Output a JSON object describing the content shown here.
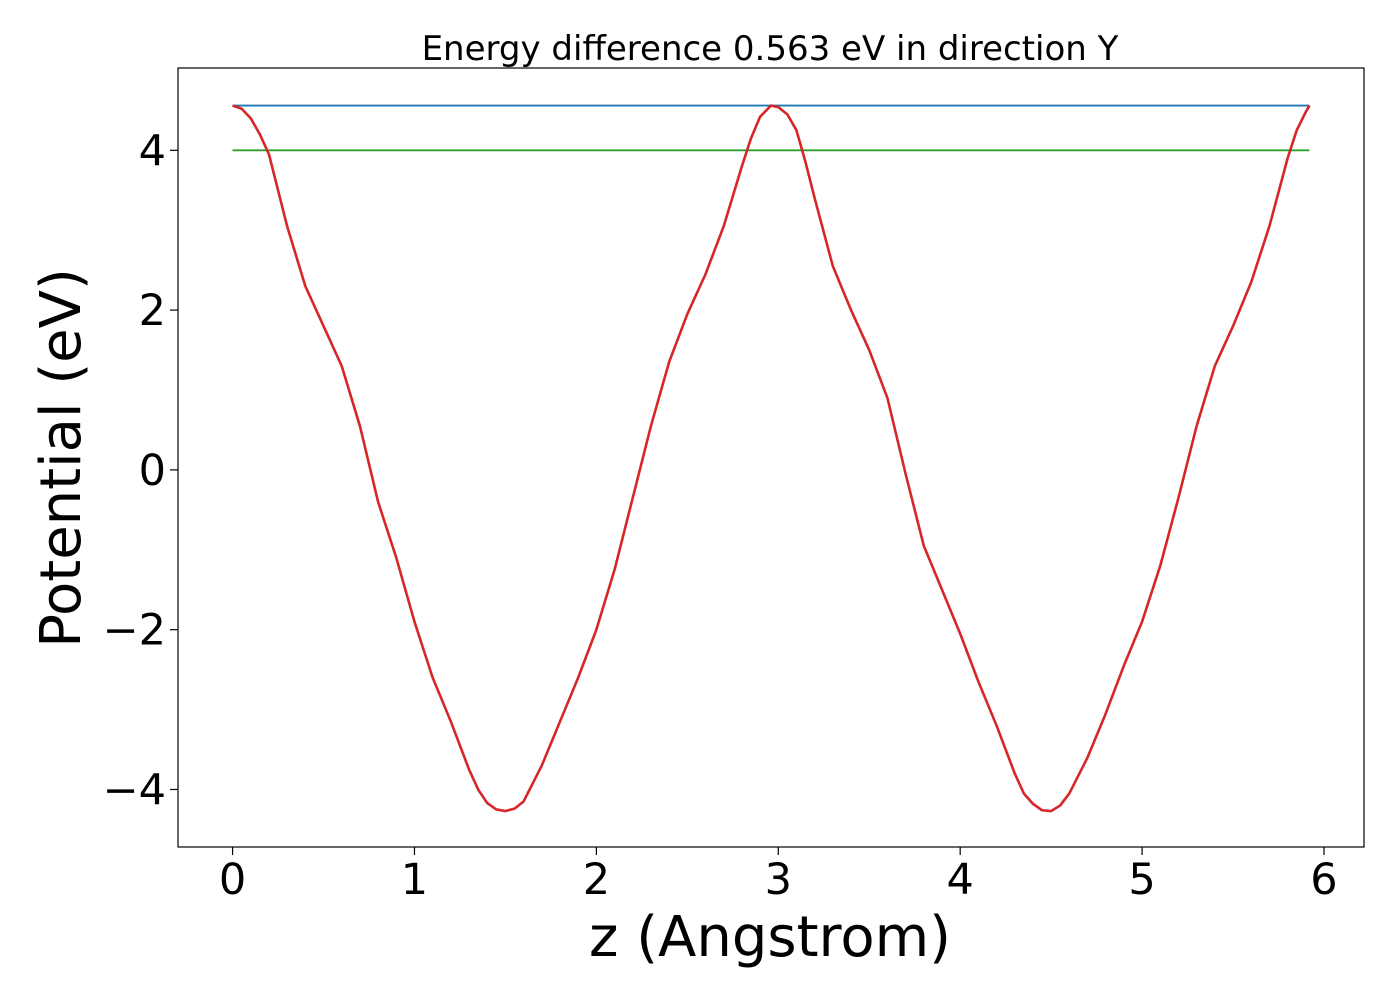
{
  "chart_data": {
    "type": "line",
    "title": "Energy difference 0.563 eV in direction Y",
    "xlabel": "z (Angstrom)",
    "ylabel": "Potential (eV)",
    "xlim": [
      -0.3,
      6.22
    ],
    "ylim": [
      -4.72,
      5.03
    ],
    "xticks": [
      0,
      1,
      2,
      3,
      4,
      5,
      6
    ],
    "xtick_labels": [
      "0",
      "1",
      "2",
      "3",
      "4",
      "5",
      "6"
    ],
    "yticks": [
      -4,
      -2,
      0,
      2,
      4
    ],
    "ytick_labels": [
      "−4",
      "−2",
      "0",
      "2",
      "4"
    ],
    "grid": false,
    "series": [
      {
        "color": "#1f77b4",
        "x": [
          0,
          5.92
        ],
        "y": [
          4.56,
          4.56
        ]
      },
      {
        "color": "#2ca02c",
        "x": [
          0,
          5.92
        ],
        "y": [
          4.0,
          4.0
        ]
      },
      {
        "color": "#d62728",
        "x": [
          0.0,
          0.05,
          0.1,
          0.15,
          0.2,
          0.3,
          0.4,
          0.5,
          0.6,
          0.7,
          0.8,
          0.9,
          1.0,
          1.1,
          1.2,
          1.3,
          1.35,
          1.4,
          1.45,
          1.5,
          1.55,
          1.6,
          1.7,
          1.8,
          1.9,
          2.0,
          2.1,
          2.2,
          2.3,
          2.4,
          2.5,
          2.6,
          2.7,
          2.8,
          2.85,
          2.9,
          2.96,
          3.0,
          3.05,
          3.1,
          3.15,
          3.2,
          3.3,
          3.4,
          3.5,
          3.6,
          3.7,
          3.8,
          3.9,
          4.0,
          4.1,
          4.2,
          4.3,
          4.35,
          4.4,
          4.45,
          4.5,
          4.55,
          4.6,
          4.7,
          4.8,
          4.9,
          5.0,
          5.1,
          5.2,
          5.3,
          5.4,
          5.5,
          5.6,
          5.7,
          5.8,
          5.85,
          5.9,
          5.92
        ],
        "y": [
          4.56,
          4.52,
          4.4,
          4.2,
          3.95,
          3.05,
          2.3,
          1.8,
          1.3,
          0.55,
          -0.4,
          -1.1,
          -1.9,
          -2.6,
          -3.15,
          -3.75,
          -4.0,
          -4.17,
          -4.25,
          -4.27,
          -4.24,
          -4.15,
          -3.7,
          -3.15,
          -2.6,
          -2.0,
          -1.25,
          -0.35,
          0.55,
          1.35,
          1.95,
          2.45,
          3.05,
          3.8,
          4.15,
          4.42,
          4.56,
          4.54,
          4.45,
          4.25,
          3.85,
          3.4,
          2.55,
          2.0,
          1.5,
          0.9,
          -0.05,
          -0.95,
          -1.5,
          -2.05,
          -2.65,
          -3.2,
          -3.8,
          -4.05,
          -4.18,
          -4.26,
          -4.27,
          -4.2,
          -4.05,
          -3.6,
          -3.05,
          -2.45,
          -1.9,
          -1.2,
          -0.35,
          0.55,
          1.3,
          1.8,
          2.35,
          3.05,
          3.9,
          4.25,
          4.48,
          4.56
        ]
      }
    ]
  }
}
